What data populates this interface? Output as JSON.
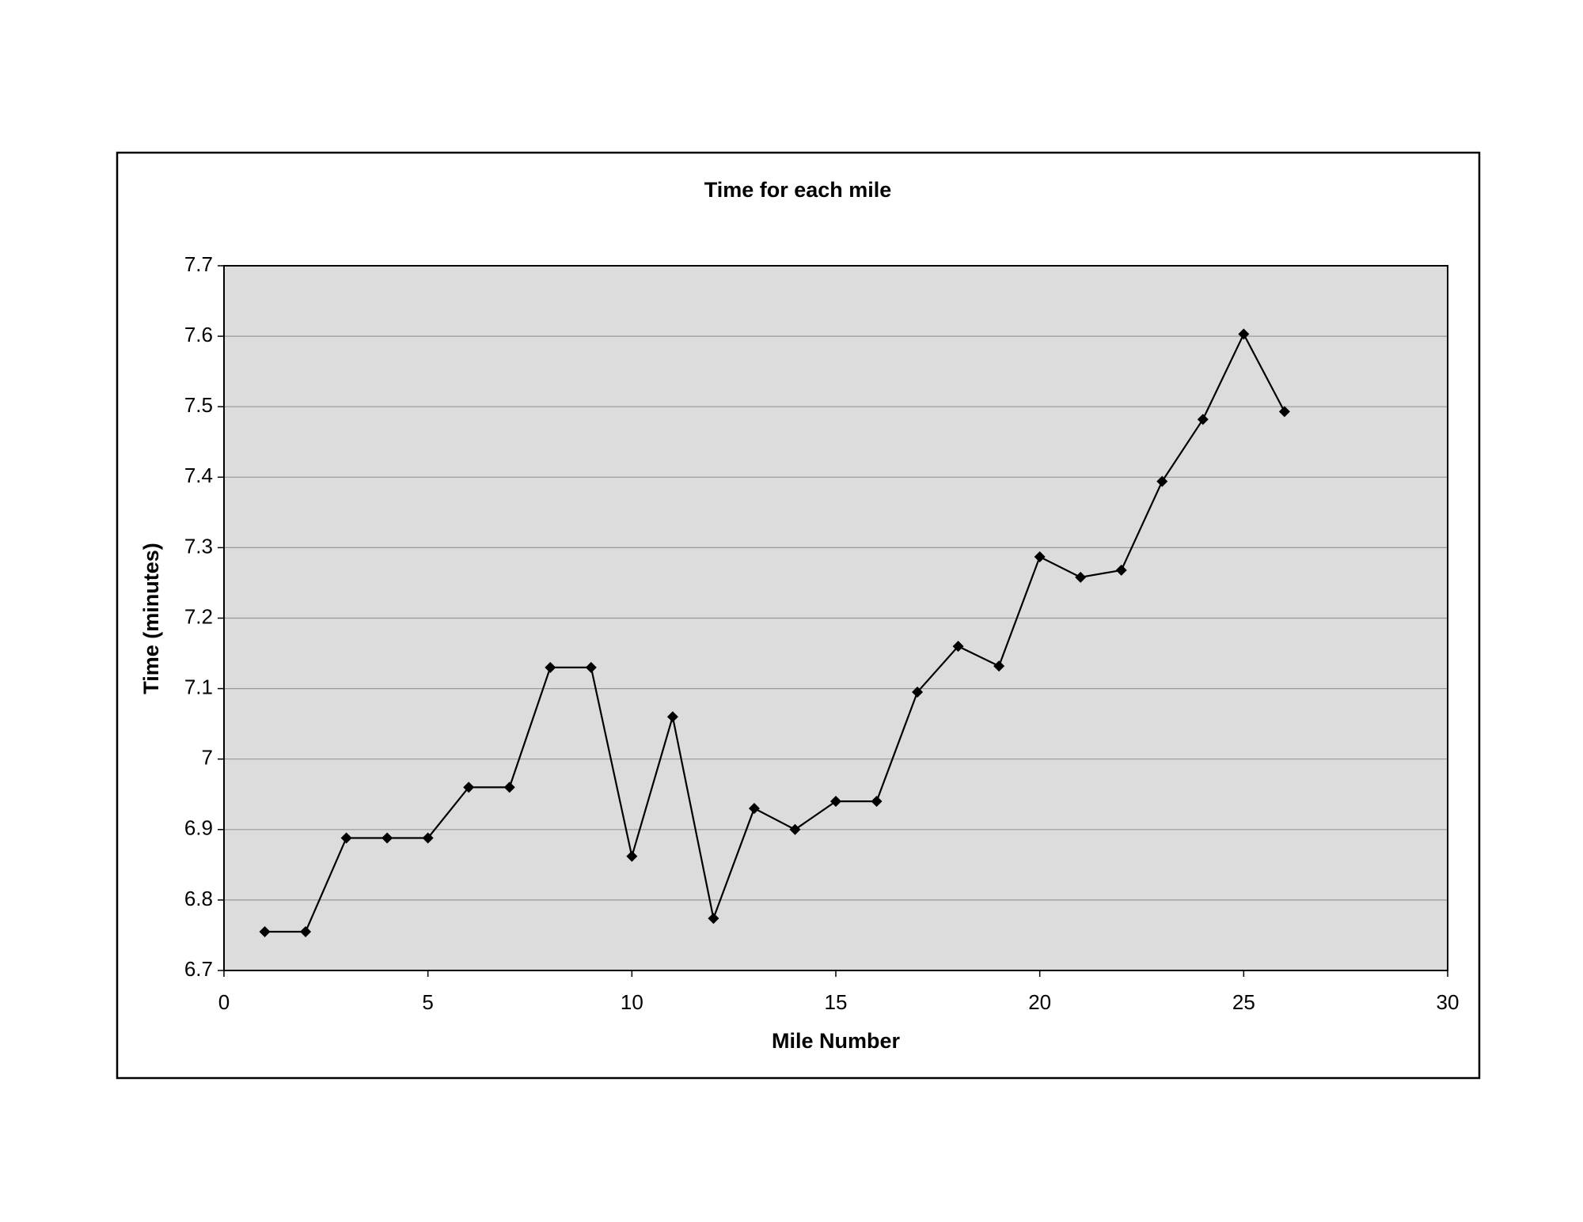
{
  "chart_data": {
    "type": "line",
    "title": "Time for each mile",
    "x_label": "Mile Number",
    "y_label": "Time (minutes)",
    "x": [
      1,
      2,
      3,
      4,
      5,
      6,
      7,
      8,
      9,
      10,
      11,
      12,
      13,
      14,
      15,
      16,
      17,
      18,
      19,
      20,
      21,
      22,
      23,
      24,
      25,
      26
    ],
    "series": [
      {
        "color": "#000000",
        "values": [
          6.755,
          6.755,
          6.888,
          6.888,
          6.888,
          6.96,
          6.96,
          7.13,
          7.13,
          6.862,
          7.06,
          6.774,
          6.93,
          6.9,
          6.94,
          6.94,
          7.095,
          7.16,
          7.132,
          7.287,
          7.258,
          7.268,
          7.394,
          7.482,
          7.603,
          7.493
        ]
      }
    ],
    "xlim": [
      0,
      30
    ],
    "xticks": [
      0,
      5,
      10,
      15,
      20,
      25,
      30
    ],
    "ylim": [
      6.7,
      7.7
    ],
    "yticks": [
      6.7,
      6.8,
      6.9,
      7,
      7.1,
      7.2,
      7.3,
      7.4,
      7.5,
      7.6,
      7.7
    ],
    "grid": true,
    "plot_background": "#dcdcdc",
    "grid_color": "#999999"
  }
}
